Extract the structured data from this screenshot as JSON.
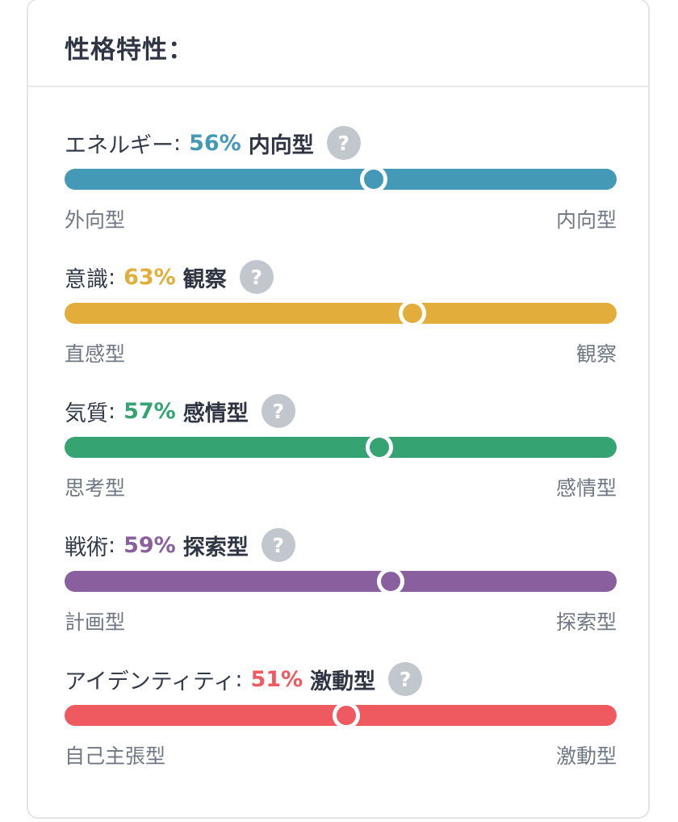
{
  "card": {
    "title": "性格特性："
  },
  "traits": [
    {
      "name": "エネルギー",
      "colon": ":",
      "percent": "56%",
      "result": "内向型",
      "value": 0.56,
      "color": "#4499b7",
      "help_icon": "?",
      "left_label": "外向型",
      "right_label": "内向型"
    },
    {
      "name": "意識",
      "colon": ":",
      "percent": "63%",
      "result": "観察",
      "value": 0.63,
      "color": "#e2ad3a",
      "help_icon": "?",
      "left_label": "直感型",
      "right_label": "観察"
    },
    {
      "name": "気質",
      "colon": ":",
      "percent": "57%",
      "result": "感情型",
      "value": 0.57,
      "color": "#36a373",
      "help_icon": "?",
      "left_label": "思考型",
      "right_label": "感情型"
    },
    {
      "name": "戦術",
      "colon": ":",
      "percent": "59%",
      "result": "探索型",
      "value": 0.59,
      "color": "#8a5f9e",
      "help_icon": "?",
      "left_label": "計画型",
      "right_label": "探索型"
    },
    {
      "name": "アイデンティティ",
      "colon": ":",
      "percent": "51%",
      "result": "激動型",
      "value": 0.51,
      "color": "#ef5a60",
      "help_icon": "?",
      "left_label": "自己主張型",
      "right_label": "激動型"
    }
  ]
}
